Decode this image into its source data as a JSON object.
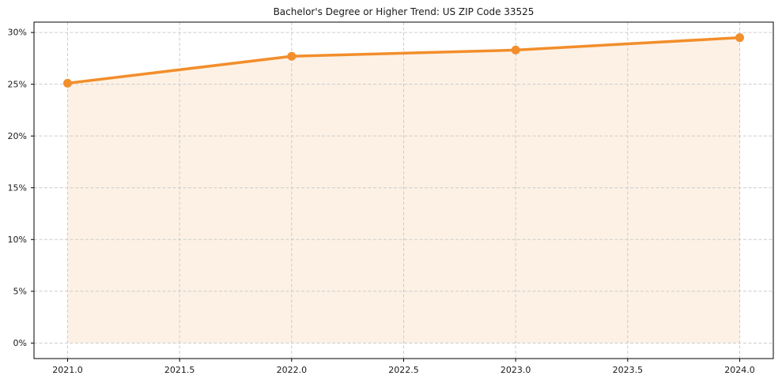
{
  "page": {
    "background": "#ffffff"
  },
  "chart_data": {
    "type": "area",
    "title": "Bachelor's Degree or Higher Trend: US ZIP Code 33525",
    "x": [
      2021,
      2022,
      2023,
      2024
    ],
    "values": [
      25.1,
      27.7,
      28.3,
      29.5
    ],
    "xlabel": "",
    "ylabel": "",
    "xlim": [
      2020.85,
      2024.15
    ],
    "ylim": [
      -1.5,
      31.0
    ],
    "x_ticks": [
      2021.0,
      2021.5,
      2022.0,
      2022.5,
      2023.0,
      2023.5,
      2024.0
    ],
    "x_tick_labels": [
      "2021.0",
      "2021.5",
      "2022.0",
      "2022.5",
      "2023.0",
      "2023.5",
      "2024.0"
    ],
    "y_ticks": [
      0,
      5,
      10,
      15,
      20,
      25,
      30
    ],
    "y_tick_labels": [
      "0%",
      "5%",
      "10%",
      "15%",
      "20%",
      "25%",
      "30%"
    ],
    "grid": true,
    "grid_style": "dashed",
    "legend": "none",
    "line_color": "#f28e2b",
    "marker": "circle",
    "fill_color": "#f28e2b",
    "fill_opacity": 0.12,
    "grid_color": "#cccccc",
    "spine_color": "#000000",
    "text_color": "#1a1a1a"
  }
}
